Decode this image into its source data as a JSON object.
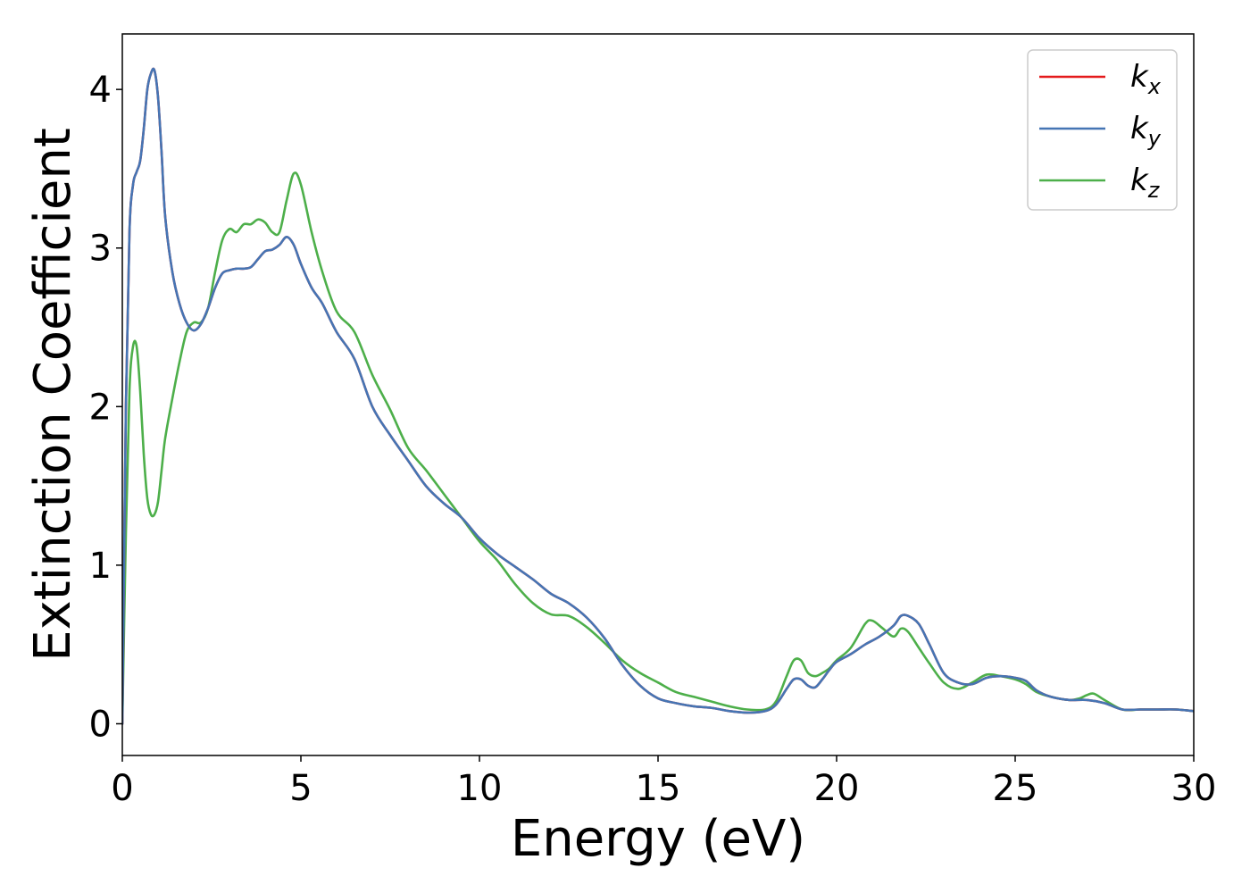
{
  "chart_data": {
    "type": "line",
    "xlabel": "Energy (eV)",
    "ylabel": "Extinction Coefficient",
    "xlim": [
      0,
      30
    ],
    "ylim": [
      -0.2,
      4.35
    ],
    "xticks": [
      0,
      5,
      10,
      15,
      20,
      25,
      30
    ],
    "xtick_labels": [
      "0",
      "5",
      "10",
      "15",
      "20",
      "25",
      "30"
    ],
    "yticks": [
      0,
      1,
      2,
      3,
      4
    ],
    "ytick_labels": [
      "0",
      "1",
      "2",
      "3",
      "4"
    ],
    "grid": false,
    "legend_position": "top-right",
    "series": [
      {
        "name": "k_x",
        "label_base": "k",
        "label_sub": "x",
        "color": "#e41a1c",
        "x": [
          0,
          0.1,
          0.2,
          0.3,
          0.4,
          0.5,
          0.6,
          0.7,
          0.8,
          0.9,
          1.0,
          1.1,
          1.2,
          1.4,
          1.6,
          1.8,
          2.0,
          2.2,
          2.4,
          2.6,
          2.8,
          3.0,
          3.2,
          3.4,
          3.6,
          3.8,
          4.0,
          4.2,
          4.4,
          4.6,
          4.8,
          5.0,
          5.3,
          5.6,
          6.0,
          6.5,
          7.0,
          7.5,
          8.0,
          8.5,
          9.0,
          9.5,
          10.0,
          10.5,
          11.0,
          11.5,
          12.0,
          12.5,
          13.0,
          13.5,
          14.0,
          14.5,
          15.0,
          15.5,
          16.0,
          16.5,
          17.0,
          17.5,
          18.0,
          18.3,
          18.6,
          18.8,
          19.0,
          19.2,
          19.4,
          19.6,
          19.8,
          20.0,
          20.4,
          20.8,
          21.2,
          21.6,
          21.8,
          22.0,
          22.3,
          22.6,
          23.0,
          23.4,
          23.8,
          24.2,
          24.6,
          25.0,
          25.3,
          25.6,
          26.0,
          26.5,
          27.0,
          27.5,
          28.0,
          28.5,
          29.0,
          29.5,
          30.0
        ],
        "y": [
          0.0,
          2.0,
          3.1,
          3.4,
          3.48,
          3.55,
          3.75,
          4.0,
          4.1,
          4.12,
          3.95,
          3.6,
          3.2,
          2.85,
          2.65,
          2.53,
          2.48,
          2.52,
          2.62,
          2.75,
          2.84,
          2.86,
          2.87,
          2.87,
          2.88,
          2.93,
          2.98,
          2.99,
          3.02,
          3.07,
          3.02,
          2.9,
          2.75,
          2.65,
          2.47,
          2.3,
          2.0,
          1.82,
          1.66,
          1.5,
          1.39,
          1.3,
          1.17,
          1.07,
          0.99,
          0.91,
          0.82,
          0.76,
          0.67,
          0.54,
          0.37,
          0.24,
          0.16,
          0.13,
          0.11,
          0.1,
          0.08,
          0.07,
          0.08,
          0.12,
          0.22,
          0.28,
          0.28,
          0.24,
          0.23,
          0.28,
          0.34,
          0.39,
          0.44,
          0.5,
          0.55,
          0.62,
          0.68,
          0.68,
          0.63,
          0.5,
          0.32,
          0.26,
          0.25,
          0.29,
          0.3,
          0.29,
          0.27,
          0.21,
          0.17,
          0.15,
          0.15,
          0.13,
          0.09,
          0.09,
          0.09,
          0.09,
          0.08
        ]
      },
      {
        "name": "k_y",
        "label_base": "k",
        "label_sub": "y",
        "color": "#4575b4",
        "x": [
          0,
          0.1,
          0.2,
          0.3,
          0.4,
          0.5,
          0.6,
          0.7,
          0.8,
          0.9,
          1.0,
          1.1,
          1.2,
          1.4,
          1.6,
          1.8,
          2.0,
          2.2,
          2.4,
          2.6,
          2.8,
          3.0,
          3.2,
          3.4,
          3.6,
          3.8,
          4.0,
          4.2,
          4.4,
          4.6,
          4.8,
          5.0,
          5.3,
          5.6,
          6.0,
          6.5,
          7.0,
          7.5,
          8.0,
          8.5,
          9.0,
          9.5,
          10.0,
          10.5,
          11.0,
          11.5,
          12.0,
          12.5,
          13.0,
          13.5,
          14.0,
          14.5,
          15.0,
          15.5,
          16.0,
          16.5,
          17.0,
          17.5,
          18.0,
          18.3,
          18.6,
          18.8,
          19.0,
          19.2,
          19.4,
          19.6,
          19.8,
          20.0,
          20.4,
          20.8,
          21.2,
          21.6,
          21.8,
          22.0,
          22.3,
          22.6,
          23.0,
          23.4,
          23.8,
          24.2,
          24.6,
          25.0,
          25.3,
          25.6,
          26.0,
          26.5,
          27.0,
          27.5,
          28.0,
          28.5,
          29.0,
          29.5,
          30.0
        ],
        "y": [
          0.0,
          2.0,
          3.1,
          3.4,
          3.48,
          3.55,
          3.75,
          4.0,
          4.1,
          4.12,
          3.95,
          3.6,
          3.2,
          2.85,
          2.65,
          2.53,
          2.48,
          2.52,
          2.62,
          2.75,
          2.84,
          2.86,
          2.87,
          2.87,
          2.88,
          2.93,
          2.98,
          2.99,
          3.02,
          3.07,
          3.02,
          2.9,
          2.75,
          2.65,
          2.47,
          2.3,
          2.0,
          1.82,
          1.66,
          1.5,
          1.39,
          1.3,
          1.17,
          1.07,
          0.99,
          0.91,
          0.82,
          0.76,
          0.67,
          0.54,
          0.37,
          0.24,
          0.16,
          0.13,
          0.11,
          0.1,
          0.08,
          0.07,
          0.08,
          0.12,
          0.22,
          0.28,
          0.28,
          0.24,
          0.23,
          0.28,
          0.34,
          0.39,
          0.44,
          0.5,
          0.55,
          0.62,
          0.68,
          0.68,
          0.63,
          0.5,
          0.32,
          0.26,
          0.25,
          0.29,
          0.3,
          0.29,
          0.27,
          0.21,
          0.17,
          0.15,
          0.15,
          0.13,
          0.09,
          0.09,
          0.09,
          0.09,
          0.08
        ]
      },
      {
        "name": "k_z",
        "label_base": "k",
        "label_sub": "z",
        "color": "#4daf4a",
        "x": [
          0,
          0.1,
          0.2,
          0.3,
          0.4,
          0.5,
          0.6,
          0.7,
          0.8,
          0.9,
          1.0,
          1.1,
          1.2,
          1.4,
          1.6,
          1.8,
          2.0,
          2.2,
          2.4,
          2.6,
          2.8,
          3.0,
          3.2,
          3.4,
          3.6,
          3.8,
          4.0,
          4.2,
          4.4,
          4.6,
          4.8,
          5.0,
          5.3,
          5.6,
          6.0,
          6.5,
          7.0,
          7.5,
          8.0,
          8.5,
          9.0,
          9.5,
          10.0,
          10.5,
          11.0,
          11.5,
          12.0,
          12.5,
          13.0,
          13.5,
          14.0,
          14.5,
          15.0,
          15.5,
          16.0,
          16.5,
          17.0,
          17.5,
          18.0,
          18.3,
          18.6,
          18.8,
          19.0,
          19.2,
          19.4,
          19.6,
          19.8,
          20.0,
          20.4,
          20.8,
          21.0,
          21.3,
          21.6,
          21.8,
          22.0,
          22.3,
          22.6,
          23.0,
          23.4,
          23.8,
          24.2,
          24.6,
          25.0,
          25.3,
          25.6,
          26.0,
          26.5,
          26.8,
          27.0,
          27.2,
          27.5,
          28.0,
          28.5,
          29.0,
          29.5,
          30.0
        ],
        "y": [
          0.0,
          1.2,
          2.1,
          2.38,
          2.38,
          2.1,
          1.7,
          1.42,
          1.32,
          1.32,
          1.4,
          1.6,
          1.8,
          2.05,
          2.28,
          2.47,
          2.53,
          2.53,
          2.62,
          2.85,
          3.05,
          3.12,
          3.1,
          3.15,
          3.15,
          3.18,
          3.16,
          3.1,
          3.1,
          3.3,
          3.47,
          3.4,
          3.1,
          2.85,
          2.6,
          2.47,
          2.2,
          1.98,
          1.74,
          1.6,
          1.45,
          1.3,
          1.15,
          1.03,
          0.88,
          0.76,
          0.69,
          0.68,
          0.61,
          0.51,
          0.4,
          0.32,
          0.26,
          0.2,
          0.17,
          0.14,
          0.11,
          0.09,
          0.09,
          0.14,
          0.3,
          0.4,
          0.4,
          0.32,
          0.3,
          0.32,
          0.35,
          0.4,
          0.48,
          0.63,
          0.65,
          0.6,
          0.55,
          0.6,
          0.58,
          0.48,
          0.38,
          0.26,
          0.22,
          0.26,
          0.31,
          0.3,
          0.28,
          0.25,
          0.2,
          0.17,
          0.15,
          0.16,
          0.18,
          0.19,
          0.15,
          0.09,
          0.09,
          0.09,
          0.09,
          0.08
        ]
      }
    ]
  }
}
